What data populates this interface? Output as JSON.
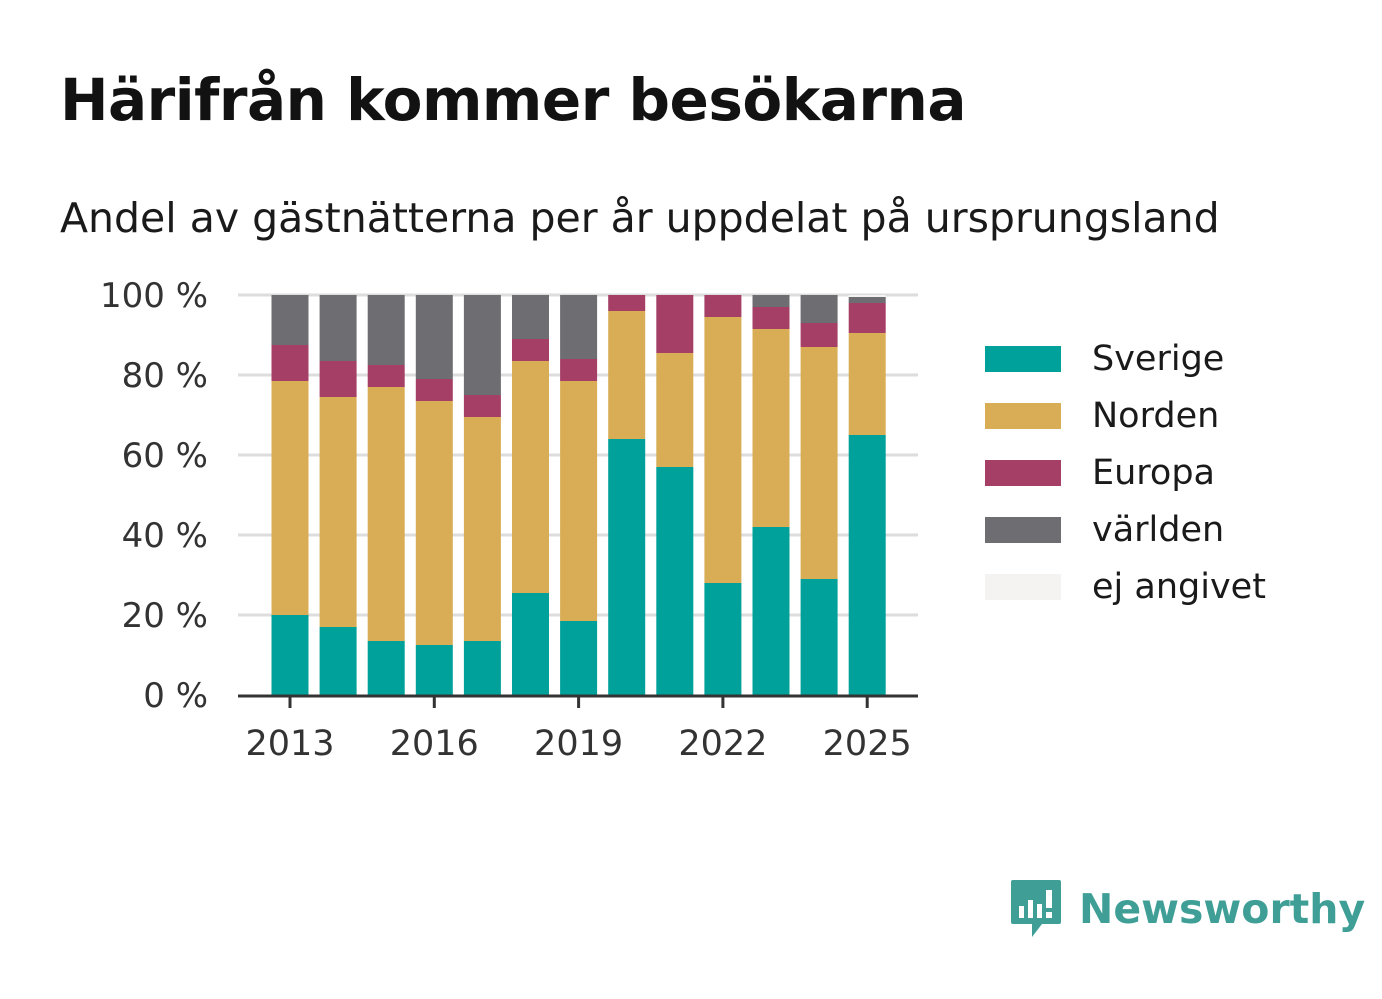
{
  "header": {
    "title": "Härifrån kommer besökarna",
    "subtitle": "Andel av gästnätterna per år uppdelat på ursprungsland"
  },
  "legend": {
    "items": [
      {
        "label": "Sverige",
        "color": "#00a19a"
      },
      {
        "label": "Norden",
        "color": "#d9ad55"
      },
      {
        "label": "Europa",
        "color": "#a53f66"
      },
      {
        "label": "världen",
        "color": "#6e6d72"
      },
      {
        "label": "ej angivet",
        "color": "#f4f3f1"
      }
    ]
  },
  "brand": {
    "name": "Newsworthy",
    "logo_icon": "newsworthy-logo-icon",
    "color": "#3f9f96"
  },
  "chart_data": {
    "type": "bar",
    "stacked": true,
    "x": [
      2013,
      2014,
      2015,
      2016,
      2017,
      2018,
      2019,
      2020,
      2021,
      2022,
      2023,
      2024,
      2025
    ],
    "x_tick_labels": [
      "2013",
      "2016",
      "2019",
      "2022",
      "2025"
    ],
    "y_tick_labels": [
      "0 %",
      "20 %",
      "40 %",
      "60 %",
      "80 %",
      "100 %"
    ],
    "ylim": [
      0,
      100
    ],
    "grid": "horizontal dotted",
    "legend_position": "right",
    "series": [
      {
        "name": "Sverige",
        "color": "#00a19a",
        "values": [
          20,
          17,
          13.5,
          12.5,
          13.5,
          25.5,
          18.5,
          64,
          57,
          28,
          42,
          29,
          65
        ]
      },
      {
        "name": "Norden",
        "color": "#d9ad55",
        "values": [
          58.5,
          57.5,
          63.5,
          61,
          56,
          58,
          60,
          32,
          28.5,
          66.5,
          49.5,
          58,
          25.5
        ]
      },
      {
        "name": "Europa",
        "color": "#a53f66",
        "values": [
          9,
          9,
          5.5,
          5.5,
          5.5,
          5.5,
          5.5,
          4,
          14.5,
          5.5,
          5.5,
          6,
          7.5
        ]
      },
      {
        "name": "världen",
        "color": "#6e6d72",
        "values": [
          12.5,
          16.5,
          17.5,
          21,
          25,
          11,
          16,
          0,
          0,
          0,
          3,
          7,
          1.5
        ]
      },
      {
        "name": "ej angivet",
        "color": "#f4f3f1",
        "values": [
          0,
          0,
          0,
          0,
          0,
          0,
          0,
          0,
          0,
          0,
          0,
          0,
          0.5
        ]
      }
    ]
  }
}
